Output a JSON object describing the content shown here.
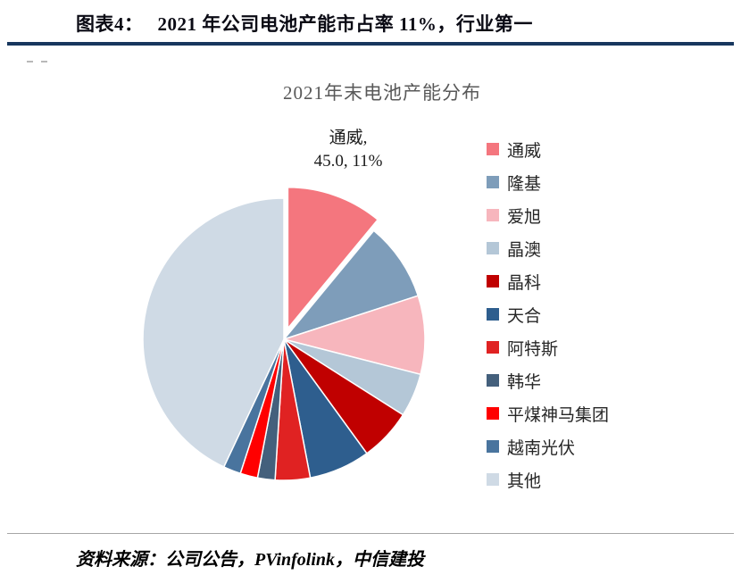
{
  "header": {
    "figure_label": "图表4：",
    "title": "2021 年公司电池产能市占率 11%，行业第一"
  },
  "footer": {
    "source": "资料来源：公司公告，PVinfolink，中信建投"
  },
  "chart_data": {
    "type": "pie",
    "title": "2021年末电池产能分布",
    "categories": [
      "通威",
      "隆基",
      "爱旭",
      "晶澳",
      "晶科",
      "天合",
      "阿特斯",
      "韩华",
      "平煤神马集团",
      "越南光伏",
      "其他"
    ],
    "values": [
      11,
      9,
      9,
      5,
      6,
      7,
      4,
      2,
      2,
      2,
      43
    ],
    "value_unit": "percent (通威 labeled 11%; others estimated from slice angles)",
    "colors": [
      "#F4767E",
      "#7E9DBA",
      "#F7B6BD",
      "#B4C7D7",
      "#C00000",
      "#2E5E8E",
      "#E02222",
      "#44607C",
      "#FF0000",
      "#49749E",
      "#CFDAE5"
    ],
    "highlight": {
      "category": "通威",
      "capacity": "45.0",
      "share": "11%",
      "label_line1": "通威,",
      "label_line2": "45.0, 11%"
    },
    "exploded_index": 0,
    "start_angle": -90,
    "direction": "clockwise",
    "legend_position": "right",
    "grid": false
  },
  "style": {
    "rule_color": "#17375E",
    "chart_title_color": "#595959"
  }
}
